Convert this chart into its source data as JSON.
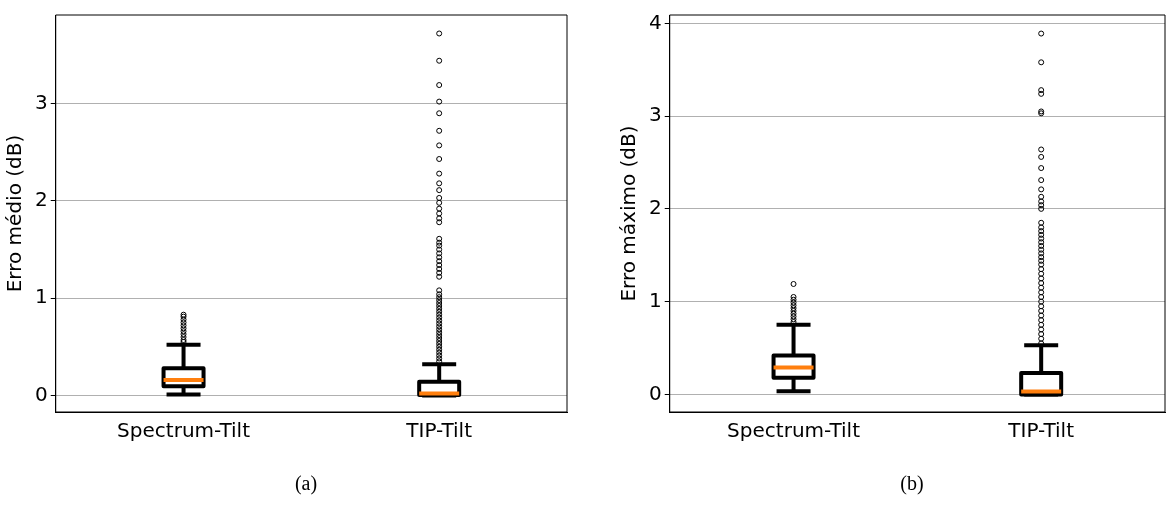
{
  "chart_data": [
    {
      "type": "box",
      "categories": [
        "Spectrum-Tilt",
        "TIP-Tilt"
      ],
      "ylabel": "Erro médio (dB)",
      "ylim": [
        -0.17,
        3.91
      ],
      "yticks": [
        0,
        1,
        2,
        3
      ],
      "grid": "y",
      "annotations": [
        "(a)"
      ],
      "boxes": [
        {
          "low": 0.01,
          "q1": 0.095,
          "median": 0.16,
          "q3": 0.28,
          "high": 0.52,
          "outliers": [
            0.55,
            0.57,
            0.6,
            0.63,
            0.66,
            0.69,
            0.72,
            0.75,
            0.78,
            0.81,
            0.83
          ]
        },
        {
          "low": 0,
          "q1": 0.005,
          "median": 0.02,
          "q3": 0.14,
          "high": 0.32,
          "outliers": [
            0.35,
            0.38,
            0.41,
            0.44,
            0.47,
            0.5,
            0.53,
            0.56,
            0.59,
            0.62,
            0.65,
            0.68,
            0.71,
            0.74,
            0.77,
            0.8,
            0.83,
            0.86,
            0.89,
            0.92,
            0.95,
            0.98,
            1.01,
            1.04,
            1.08,
            1.22,
            1.26,
            1.3,
            1.34,
            1.38,
            1.42,
            1.46,
            1.5,
            1.54,
            1.57,
            1.61,
            1.78,
            1.82,
            1.87,
            1.92,
            1.98,
            2.03,
            2.11,
            2.18,
            2.28,
            2.43,
            2.57,
            2.72,
            2.9,
            3.02,
            3.19,
            3.44,
            3.72
          ]
        }
      ]
    },
    {
      "type": "box",
      "categories": [
        "Spectrum-Tilt",
        "TIP-Tilt"
      ],
      "ylabel": "Erro máximo (dB)",
      "ylim": [
        -0.19,
        4.09
      ],
      "yticks": [
        0,
        1,
        2,
        3,
        4
      ],
      "grid": "y",
      "annotations": [
        "(b)"
      ],
      "boxes": [
        {
          "low": 0.035,
          "q1": 0.18,
          "median": 0.29,
          "q3": 0.42,
          "high": 0.75,
          "outliers": [
            0.78,
            0.81,
            0.84,
            0.87,
            0.9,
            0.93,
            0.96,
            0.99,
            1.02,
            1.05,
            1.19
          ]
        },
        {
          "low": 0,
          "q1": 0,
          "median": 0.03,
          "q3": 0.23,
          "high": 0.53,
          "outliers": [
            0.55,
            0.6,
            0.65,
            0.7,
            0.75,
            0.8,
            0.85,
            0.9,
            0.95,
            1.0,
            1.05,
            1.1,
            1.15,
            1.2,
            1.25,
            1.3,
            1.35,
            1.4,
            1.44,
            1.48,
            1.52,
            1.56,
            1.6,
            1.64,
            1.68,
            1.72,
            1.76,
            1.8,
            1.85,
            2.0,
            2.04,
            2.08,
            2.13,
            2.21,
            2.31,
            2.44,
            2.56,
            2.64,
            3.03,
            3.05,
            3.24,
            3.28,
            3.58,
            3.89
          ]
        }
      ]
    }
  ]
}
